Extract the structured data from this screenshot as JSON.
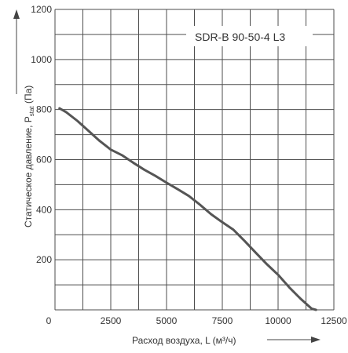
{
  "chart_data": {
    "type": "line",
    "title": "",
    "xlabel": "Расход воздуха, L (м³/ч)",
    "ylabel": "Статическое давление, P",
    "ylabel_sub": "stat",
    "ylabel_unit": " (Па)",
    "xlim": [
      0,
      12500
    ],
    "ylim": [
      0,
      1200
    ],
    "x_ticks": [
      0,
      2500,
      5000,
      7500,
      10000,
      12500
    ],
    "y_ticks": [
      200,
      400,
      600,
      800,
      1000,
      1200
    ],
    "x_minor_step": 1250,
    "y_minor_step": 100,
    "grid": true,
    "series": [
      {
        "name": "SDR-B 90-50-4 L3",
        "x": [
          200,
          500,
          1000,
          1500,
          2000,
          2500,
          3000,
          3500,
          4000,
          4500,
          5000,
          5500,
          6000,
          6500,
          7000,
          7500,
          8000,
          8500,
          9000,
          9500,
          10000,
          10500,
          11000,
          11500,
          11700
        ],
        "y": [
          805,
          790,
          755,
          715,
          675,
          640,
          618,
          588,
          560,
          535,
          508,
          482,
          455,
          420,
          382,
          350,
          320,
          275,
          228,
          182,
          140,
          90,
          45,
          5,
          0
        ]
      }
    ]
  },
  "colors": {
    "line": "#555555",
    "grid": "#4d4d4d",
    "background": "#ffffff"
  }
}
